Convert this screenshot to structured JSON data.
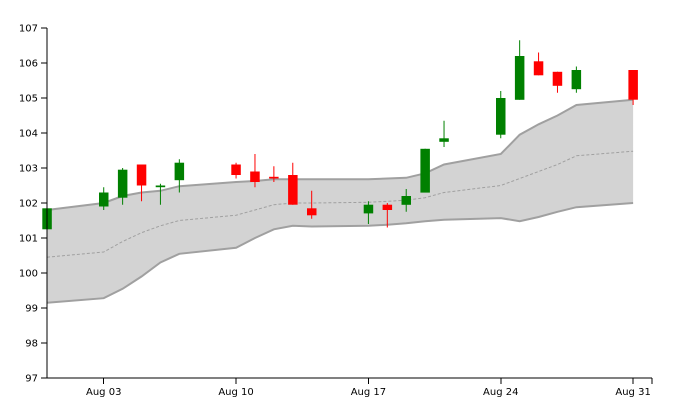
{
  "chart_data": {
    "type": "candlestick",
    "title": "",
    "xlabel": "",
    "ylabel": "",
    "ylim": [
      97,
      107
    ],
    "xlim": [
      "2020-07-31",
      "2020-09-01"
    ],
    "y_ticks": [
      "97",
      "98",
      "99",
      "100",
      "101",
      "102",
      "103",
      "104",
      "105",
      "106",
      "107"
    ],
    "x_ticks": [
      {
        "date": "2020-08-03",
        "label": "Aug 03"
      },
      {
        "date": "2020-08-10",
        "label": "Aug 10"
      },
      {
        "date": "2020-08-17",
        "label": "Aug 17"
      },
      {
        "date": "2020-08-24",
        "label": "Aug 24"
      },
      {
        "date": "2020-08-31",
        "label": "Aug 31"
      }
    ],
    "colors": {
      "up": "#008000",
      "down": "#ff0000",
      "band_fill": "#d3d3d3",
      "band_edge": "#a0a0a0",
      "middle_line": "#a0a0a0"
    },
    "candles": [
      {
        "date": "2020-07-31",
        "open": 101.25,
        "high": 102.1,
        "low": 101.1,
        "close": 101.85
      },
      {
        "date": "2020-08-03",
        "open": 101.9,
        "high": 102.45,
        "low": 101.8,
        "close": 102.3
      },
      {
        "date": "2020-08-04",
        "open": 102.15,
        "high": 103.0,
        "low": 101.95,
        "close": 102.95
      },
      {
        "date": "2020-08-05",
        "open": 103.1,
        "high": 103.1,
        "low": 102.05,
        "close": 102.5
      },
      {
        "date": "2020-08-06",
        "open": 102.45,
        "high": 102.55,
        "low": 101.95,
        "close": 102.5
      },
      {
        "date": "2020-08-07",
        "open": 102.65,
        "high": 103.25,
        "low": 102.3,
        "close": 103.15
      },
      {
        "date": "2020-08-10",
        "open": 103.1,
        "high": 103.15,
        "low": 102.7,
        "close": 102.8
      },
      {
        "date": "2020-08-11",
        "open": 102.9,
        "high": 103.4,
        "low": 102.45,
        "close": 102.6
      },
      {
        "date": "2020-08-12",
        "open": 102.75,
        "high": 103.05,
        "low": 102.6,
        "close": 102.7
      },
      {
        "date": "2020-08-13",
        "open": 102.8,
        "high": 103.15,
        "low": 101.95,
        "close": 101.95
      },
      {
        "date": "2020-08-14",
        "open": 101.85,
        "high": 102.35,
        "low": 101.55,
        "close": 101.65
      },
      {
        "date": "2020-08-17",
        "open": 101.7,
        "high": 102.05,
        "low": 101.4,
        "close": 101.95
      },
      {
        "date": "2020-08-18",
        "open": 101.95,
        "high": 102.0,
        "low": 101.3,
        "close": 101.8
      },
      {
        "date": "2020-08-19",
        "open": 101.95,
        "high": 102.4,
        "low": 101.75,
        "close": 102.2
      },
      {
        "date": "2020-08-20",
        "open": 102.3,
        "high": 103.55,
        "low": 102.3,
        "close": 103.55
      },
      {
        "date": "2020-08-21",
        "open": 103.75,
        "high": 104.35,
        "low": 103.6,
        "close": 103.85
      },
      {
        "date": "2020-08-24",
        "open": 103.95,
        "high": 105.2,
        "low": 103.85,
        "close": 105.0
      },
      {
        "date": "2020-08-25",
        "open": 104.95,
        "high": 106.65,
        "low": 104.95,
        "close": 106.2
      },
      {
        "date": "2020-08-26",
        "open": 106.05,
        "high": 106.3,
        "low": 105.65,
        "close": 105.65
      },
      {
        "date": "2020-08-27",
        "open": 105.75,
        "high": 105.75,
        "low": 105.15,
        "close": 105.35
      },
      {
        "date": "2020-08-28",
        "open": 105.25,
        "high": 105.9,
        "low": 105.15,
        "close": 105.8
      },
      {
        "date": "2020-08-31",
        "open": 105.8,
        "high": 105.8,
        "low": 104.8,
        "close": 104.95
      }
    ],
    "bollinger": [
      {
        "date": "2020-07-31",
        "upper": 101.8,
        "middle": 100.45,
        "lower": 99.15
      },
      {
        "date": "2020-08-03",
        "upper": 102.0,
        "middle": 100.6,
        "lower": 99.28
      },
      {
        "date": "2020-08-04",
        "upper": 102.2,
        "middle": 100.9,
        "lower": 99.55
      },
      {
        "date": "2020-08-05",
        "upper": 102.3,
        "middle": 101.15,
        "lower": 99.9
      },
      {
        "date": "2020-08-06",
        "upper": 102.35,
        "middle": 101.35,
        "lower": 100.3
      },
      {
        "date": "2020-08-07",
        "upper": 102.48,
        "middle": 101.5,
        "lower": 100.55
      },
      {
        "date": "2020-08-10",
        "upper": 102.6,
        "middle": 101.65,
        "lower": 100.72
      },
      {
        "date": "2020-08-11",
        "upper": 102.63,
        "middle": 101.8,
        "lower": 101.0
      },
      {
        "date": "2020-08-12",
        "upper": 102.68,
        "middle": 101.95,
        "lower": 101.25
      },
      {
        "date": "2020-08-13",
        "upper": 102.68,
        "middle": 102.0,
        "lower": 101.35
      },
      {
        "date": "2020-08-14",
        "upper": 102.68,
        "middle": 102.0,
        "lower": 101.33
      },
      {
        "date": "2020-08-17",
        "upper": 102.68,
        "middle": 102.02,
        "lower": 101.35
      },
      {
        "date": "2020-08-18",
        "upper": 102.7,
        "middle": 102.05,
        "lower": 101.38
      },
      {
        "date": "2020-08-19",
        "upper": 102.72,
        "middle": 102.08,
        "lower": 101.42
      },
      {
        "date": "2020-08-20",
        "upper": 102.85,
        "middle": 102.15,
        "lower": 101.48
      },
      {
        "date": "2020-08-21",
        "upper": 103.1,
        "middle": 102.3,
        "lower": 101.52
      },
      {
        "date": "2020-08-24",
        "upper": 103.4,
        "middle": 102.5,
        "lower": 101.57
      },
      {
        "date": "2020-08-25",
        "upper": 103.95,
        "middle": 102.7,
        "lower": 101.48
      },
      {
        "date": "2020-08-26",
        "upper": 104.25,
        "middle": 102.9,
        "lower": 101.6
      },
      {
        "date": "2020-08-27",
        "upper": 104.5,
        "middle": 103.1,
        "lower": 101.75
      },
      {
        "date": "2020-08-28",
        "upper": 104.8,
        "middle": 103.35,
        "lower": 101.88
      },
      {
        "date": "2020-08-31",
        "upper": 104.95,
        "middle": 103.48,
        "lower": 102.0
      }
    ]
  }
}
